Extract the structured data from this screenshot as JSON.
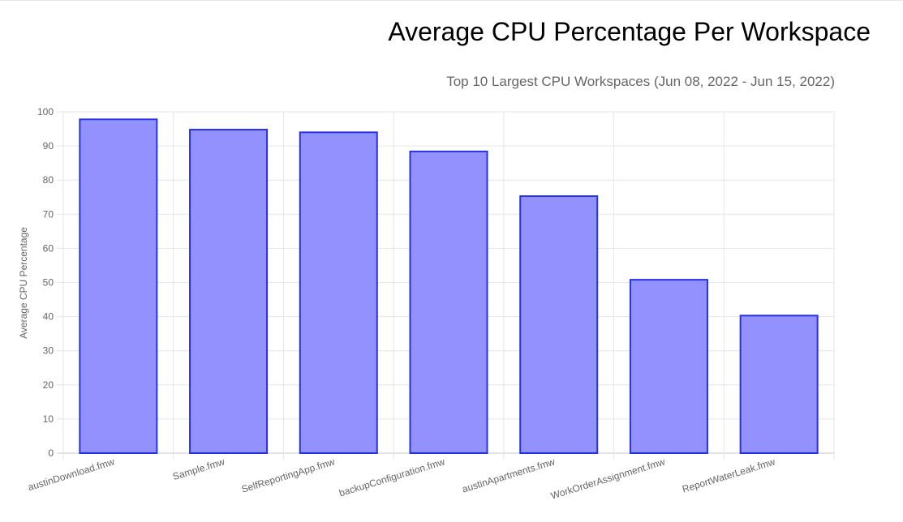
{
  "chart_data": {
    "type": "bar",
    "title": "Average CPU Percentage Per Workspace",
    "subtitle": "Top 10 Largest CPU Workspaces (Jun 08, 2022 - Jun 15, 2022)",
    "xlabel": "",
    "ylabel": "Average CPU Percentage",
    "categories": [
      "austinDownload.fmw",
      "Sample.fmw",
      "SelfReportingApp.fmw",
      "backupConfiguration.fmw",
      "austinApartments.fmw",
      "WorkOrderAssignment.fmw",
      "ReportWaterLeak.fmw"
    ],
    "values": [
      97.8,
      94.8,
      94.0,
      88.4,
      75.3,
      50.8,
      40.3
    ],
    "ylim": [
      0,
      100
    ],
    "yticks": [
      0,
      10,
      20,
      30,
      40,
      50,
      60,
      70,
      80,
      90,
      100
    ],
    "grid": true,
    "legend": "none"
  },
  "colors": {
    "bar_fill": "#9391fe",
    "bar_border": "#2732e0",
    "grid": "#e6e6e6",
    "axis_text": "#666666"
  }
}
